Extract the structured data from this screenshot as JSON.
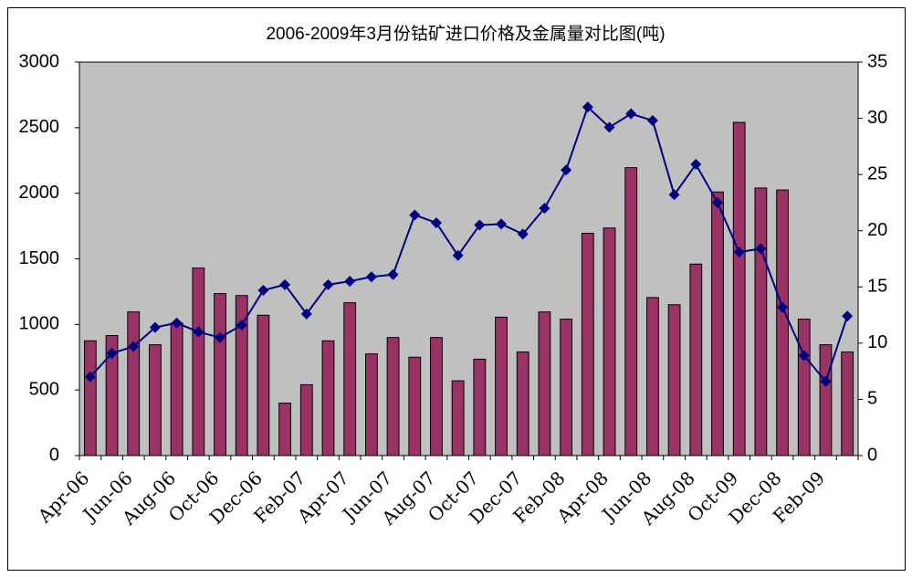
{
  "chart_data": {
    "type": "bar-line",
    "title": "2006-2009年3月份钴矿进口价格及金属量对比图(吨)",
    "categories": [
      "Apr-06",
      null,
      "Jun-06",
      null,
      "Aug-06",
      null,
      "Oct-06",
      null,
      "Dec-06",
      null,
      "Feb-07",
      null,
      "Apr-07",
      null,
      "Jun-07",
      null,
      "Aug-07",
      null,
      "Oct-07",
      null,
      "Dec-07",
      null,
      "Feb-08",
      null,
      "Apr-08",
      null,
      "Jun-08",
      null,
      "Aug-08",
      null,
      "Oct-09",
      null,
      "Dec-08",
      null,
      "Feb-09",
      null
    ],
    "series": [
      {
        "type": "bar",
        "color": "#993366",
        "values": [
          875,
          915,
          1095,
          845,
          1010,
          1430,
          1235,
          1220,
          1070,
          400,
          540,
          875,
          1165,
          775,
          900,
          750,
          900,
          570,
          735,
          1055,
          790,
          1095,
          1040,
          1695,
          1735,
          2195,
          1205,
          1150,
          1460,
          2010,
          2540,
          2040,
          2025,
          1040,
          845,
          790
        ]
      },
      {
        "type": "line",
        "axis": "y2",
        "color": "#000080",
        "values": [
          7.0,
          9.1,
          9.7,
          11.4,
          11.8,
          11.0,
          10.5,
          11.6,
          14.7,
          15.2,
          12.6,
          15.2,
          15.5,
          15.9,
          16.1,
          21.4,
          20.7,
          17.8,
          20.5,
          20.6,
          19.7,
          22.0,
          25.4,
          31.0,
          29.2,
          30.4,
          29.8,
          23.2,
          25.9,
          22.5,
          18.1,
          18.4,
          13.2,
          8.9,
          6.6,
          12.4
        ]
      }
    ],
    "ylim": [
      0,
      3000
    ],
    "yticks": [
      0,
      500,
      1000,
      1500,
      2000,
      2500,
      3000
    ],
    "y2lim": [
      0,
      35
    ],
    "y2ticks": [
      0,
      5,
      10,
      15,
      20,
      25,
      30,
      35
    ],
    "plot_background": "#c0c0c0"
  }
}
